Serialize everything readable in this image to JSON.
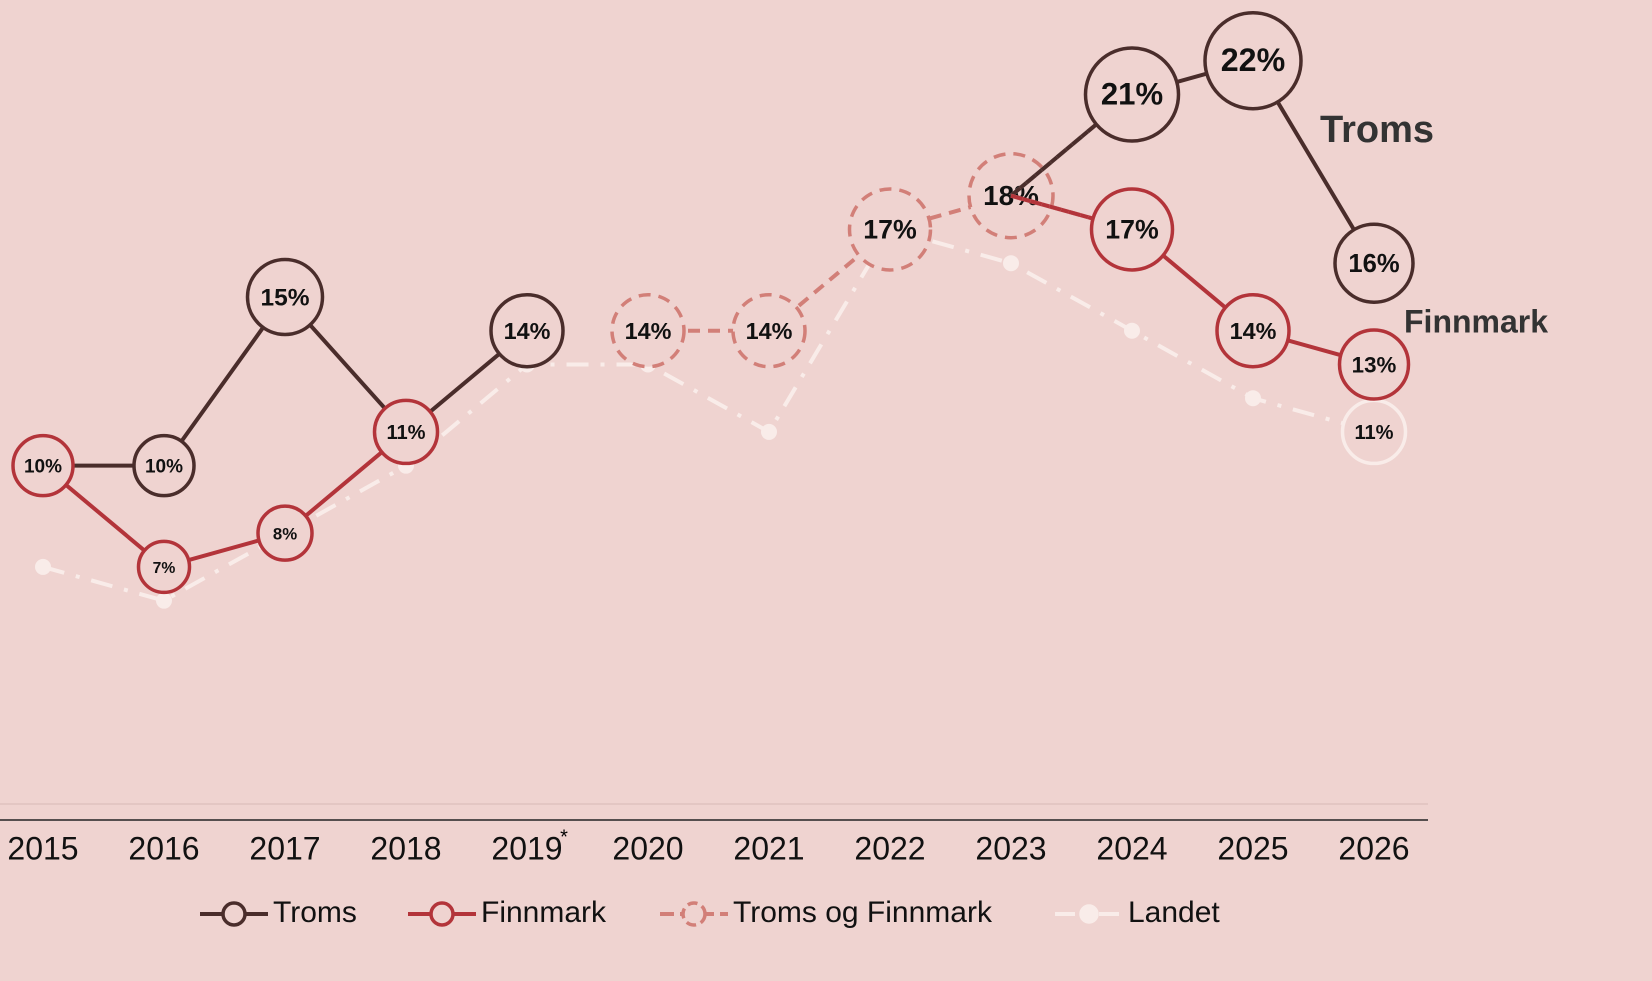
{
  "chart_data": {
    "type": "line",
    "categories": [
      "2015",
      "2016",
      "2017",
      "2018",
      "2019",
      "2020",
      "2021",
      "2022",
      "2023",
      "2024",
      "2025",
      "2026"
    ],
    "annotations": [
      "*"
    ],
    "ylim": [
      -0.5,
      23.8
    ],
    "legend": "bottom",
    "series": [
      {
        "name": "Troms",
        "color": "#4a2d2b",
        "style": "solid",
        "values": [
          10,
          10,
          15,
          11,
          14,
          null,
          null,
          null,
          18,
          21,
          22,
          16
        ],
        "value_labels": [
          null,
          "10%",
          "15%",
          null,
          "14%",
          null,
          null,
          null,
          null,
          "21%",
          "22%",
          "16%"
        ]
      },
      {
        "name": "Finnmark",
        "color": "#b3343a",
        "style": "solid",
        "values": [
          10,
          7,
          8,
          11,
          null,
          null,
          null,
          null,
          18,
          17,
          14,
          13
        ],
        "value_labels": [
          "10%",
          "7%",
          "8%",
          "11%",
          null,
          null,
          null,
          null,
          null,
          "17%",
          "14%",
          "13%"
        ]
      },
      {
        "name": "Troms og Finnmark",
        "color": "#d27f78",
        "style": "dashed",
        "values": [
          null,
          null,
          null,
          null,
          null,
          14,
          14,
          17,
          18,
          null,
          null,
          null
        ],
        "value_labels": [
          null,
          null,
          null,
          null,
          null,
          "14%",
          "14%",
          "17%",
          "18%",
          null,
          null,
          null
        ]
      },
      {
        "name": "Landet",
        "color": "#f9ece9",
        "style": "dashdot",
        "values": [
          7,
          6,
          8,
          10,
          13,
          13,
          11,
          17,
          16,
          14,
          12,
          11
        ],
        "value_labels": [
          null,
          null,
          null,
          null,
          null,
          null,
          null,
          null,
          null,
          null,
          null,
          "11%"
        ]
      }
    ]
  }
}
